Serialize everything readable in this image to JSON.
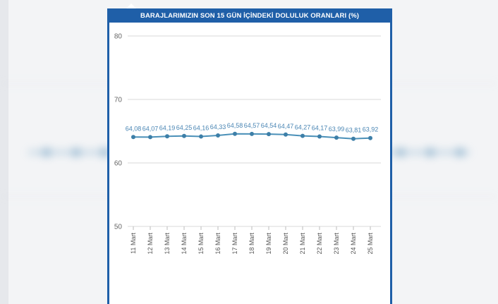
{
  "colors": {
    "header": "#1f5fa8",
    "line": "#4a90b8",
    "point": "#3d7fa8",
    "label": "#4a86b4",
    "grid": "#d9d9d9"
  },
  "chart_data": {
    "type": "line",
    "title": "BARAJLARIMIZIN SON 15 GÜN İÇİNDEKİ DOLULUK ORANLARI (%)",
    "xlabel": "",
    "ylabel": "",
    "ylim": [
      50,
      80
    ],
    "yticks": [
      80,
      70,
      60,
      50
    ],
    "grid": true,
    "legend": "none",
    "categories": [
      "11 Mart",
      "12 Mart",
      "13 Mart",
      "14 Mart",
      "15 Mart",
      "16 Mart",
      "17 Mart",
      "18 Mart",
      "19 Mart",
      "20 Mart",
      "21 Mart",
      "22 Mart",
      "23 Mart",
      "24 Mart",
      "25 Mart"
    ],
    "values": [
      64.08,
      64.07,
      64.19,
      64.25,
      64.16,
      64.33,
      64.58,
      64.57,
      64.54,
      64.47,
      64.27,
      64.17,
      63.99,
      63.81,
      63.92
    ],
    "data_labels": [
      "64,08",
      "64,07",
      "64,19",
      "64,25",
      "64,16",
      "64,33",
      "64,58",
      "64,57",
      "64,54",
      "64,47",
      "64,27",
      "64,17",
      "63,99",
      "63,81",
      "63,92"
    ]
  }
}
